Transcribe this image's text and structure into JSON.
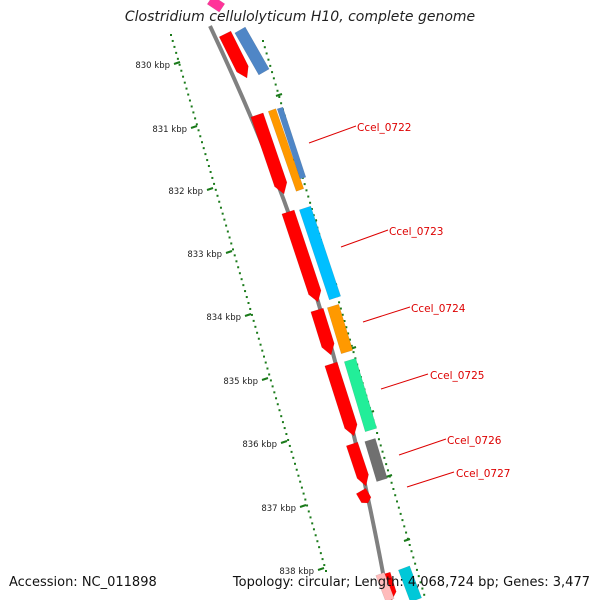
{
  "title": "Clostridium cellulolyticum H10, complete genome",
  "footer": {
    "accession": "Accession: NC_011898",
    "topology": "Topology: circular; Length: 4,068,724 bp; Genes: 3,477"
  },
  "colors": {
    "forward_cds": "#ff0000",
    "backbone": "#808080",
    "ticks": "#1a7a1a",
    "label_line": "#dd0000"
  },
  "kbp_labels": [
    "830 kbp",
    "831 kbp",
    "832 kbp",
    "833 kbp",
    "834 kbp",
    "835 kbp",
    "836 kbp",
    "837 kbp",
    "838 kbp"
  ],
  "genes": [
    {
      "label": "",
      "color": "#4f86c6"
    },
    {
      "label": "Ccel_0722",
      "color": "#4f86c6"
    },
    {
      "label": "",
      "color": "#ff9900"
    },
    {
      "label": "Ccel_0723",
      "color": "#00bfff"
    },
    {
      "label": "Ccel_0724",
      "color": "#ff9900"
    },
    {
      "label": "Ccel_0725",
      "color": "#22ee99"
    },
    {
      "label": "Ccel_0726",
      "color": "#707070"
    },
    {
      "label": "Ccel_0727",
      "color": ""
    }
  ]
}
